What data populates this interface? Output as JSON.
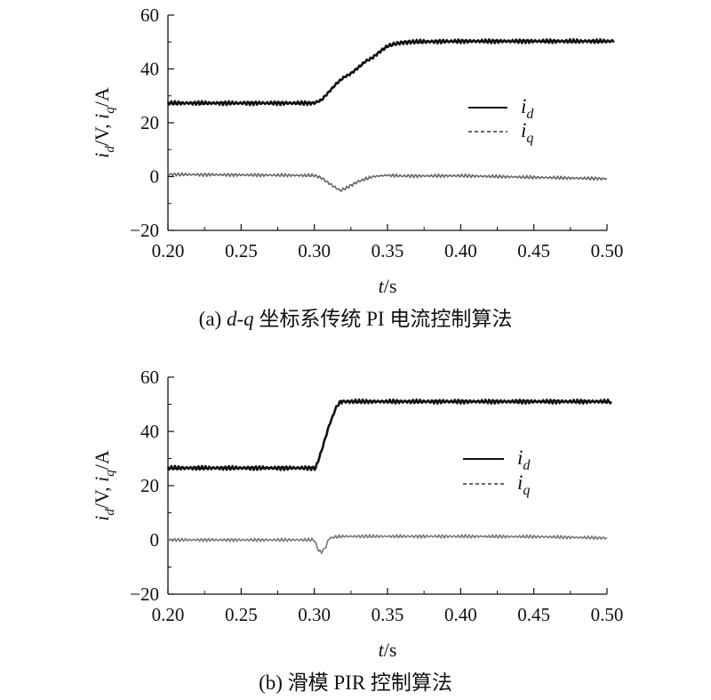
{
  "chart_data": [
    {
      "type": "line",
      "panel": "a",
      "caption_prefix": "(a) ",
      "caption_italic": "d-q",
      "caption_rest": " 坐标系传统 PI 电流控制算法",
      "ylabel": {
        "p1": "i",
        "s1": "d",
        "p2": "/V, ",
        "p3": "i",
        "s2": "q",
        "p4": "/A"
      },
      "xlabel": {
        "italic": "t",
        "rest": "/s"
      },
      "xlim": [
        0.2,
        0.5
      ],
      "ylim": [
        -20,
        60
      ],
      "x_ticks": [
        "0.20",
        "0.25",
        "0.30",
        "0.35",
        "0.40",
        "0.45",
        "0.50"
      ],
      "y_ticks": [
        "60",
        "40",
        "20",
        "0",
        "−20"
      ],
      "grid": false,
      "legend_position": "right, mid-upper",
      "series": [
        {
          "name": "i_d",
          "legend": {
            "main": "i",
            "sub": "d"
          },
          "style": "solid",
          "color": "#111111",
          "x": [
            0.2,
            0.3,
            0.305,
            0.31,
            0.315,
            0.32,
            0.325,
            0.33,
            0.335,
            0.34,
            0.345,
            0.35,
            0.355,
            0.36,
            0.365,
            0.37,
            0.4,
            0.45,
            0.505
          ],
          "y": [
            27.3,
            27.3,
            28.5,
            31.5,
            34.5,
            36.8,
            38.3,
            40.5,
            42.8,
            44.3,
            46.5,
            48.5,
            49.3,
            49.8,
            50.0,
            50.1,
            50.3,
            50.3,
            50.3
          ]
        },
        {
          "name": "i_q",
          "legend": {
            "main": "i",
            "sub": "q"
          },
          "style": "dashed",
          "color": "#666666",
          "x": [
            0.2,
            0.3,
            0.305,
            0.31,
            0.315,
            0.318,
            0.322,
            0.33,
            0.34,
            0.35,
            0.36,
            0.4,
            0.45,
            0.5
          ],
          "y": [
            0.8,
            0.4,
            -0.5,
            -2.5,
            -4.3,
            -5.2,
            -4.2,
            -1.8,
            0.0,
            0.5,
            0.2,
            0.3,
            -0.3,
            -0.8
          ]
        }
      ]
    },
    {
      "type": "line",
      "panel": "b",
      "caption_prefix": "(b) 滑模 PIR 控制算法",
      "caption_italic": "",
      "caption_rest": "",
      "ylabel": {
        "p1": "i",
        "s1": "d",
        "p2": "/V, ",
        "p3": "i",
        "s2": "q",
        "p4": "/A"
      },
      "xlabel": {
        "italic": "t",
        "rest": "/s"
      },
      "xlim": [
        0.2,
        0.5
      ],
      "ylim": [
        -20,
        60
      ],
      "x_ticks": [
        "0.20",
        "0.25",
        "0.30",
        "0.35",
        "0.40",
        "0.45",
        "0.50"
      ],
      "y_ticks": [
        "60",
        "40",
        "20",
        "0",
        "−20"
      ],
      "grid": false,
      "legend_position": "right, mid-upper",
      "series": [
        {
          "name": "i_d",
          "legend": {
            "main": "i",
            "sub": "d"
          },
          "style": "solid",
          "color": "#111111",
          "x": [
            0.2,
            0.301,
            0.305,
            0.31,
            0.315,
            0.318,
            0.32,
            0.35,
            0.4,
            0.45,
            0.503
          ],
          "y": [
            26.5,
            26.5,
            33.0,
            42.0,
            49.0,
            51.0,
            51.0,
            51.0,
            51.0,
            51.0,
            51.0
          ]
        },
        {
          "name": "i_q",
          "legend": {
            "main": "i",
            "sub": "q"
          },
          "style": "dashed",
          "color": "#777777",
          "x": [
            0.2,
            0.3,
            0.301,
            0.303,
            0.305,
            0.308,
            0.31,
            0.313,
            0.32,
            0.35,
            0.4,
            0.45,
            0.5
          ],
          "y": [
            0.0,
            0.0,
            -1.5,
            -4.0,
            -4.5,
            -2.5,
            0.5,
            1.0,
            1.3,
            1.3,
            1.3,
            1.2,
            0.7
          ]
        }
      ]
    }
  ]
}
